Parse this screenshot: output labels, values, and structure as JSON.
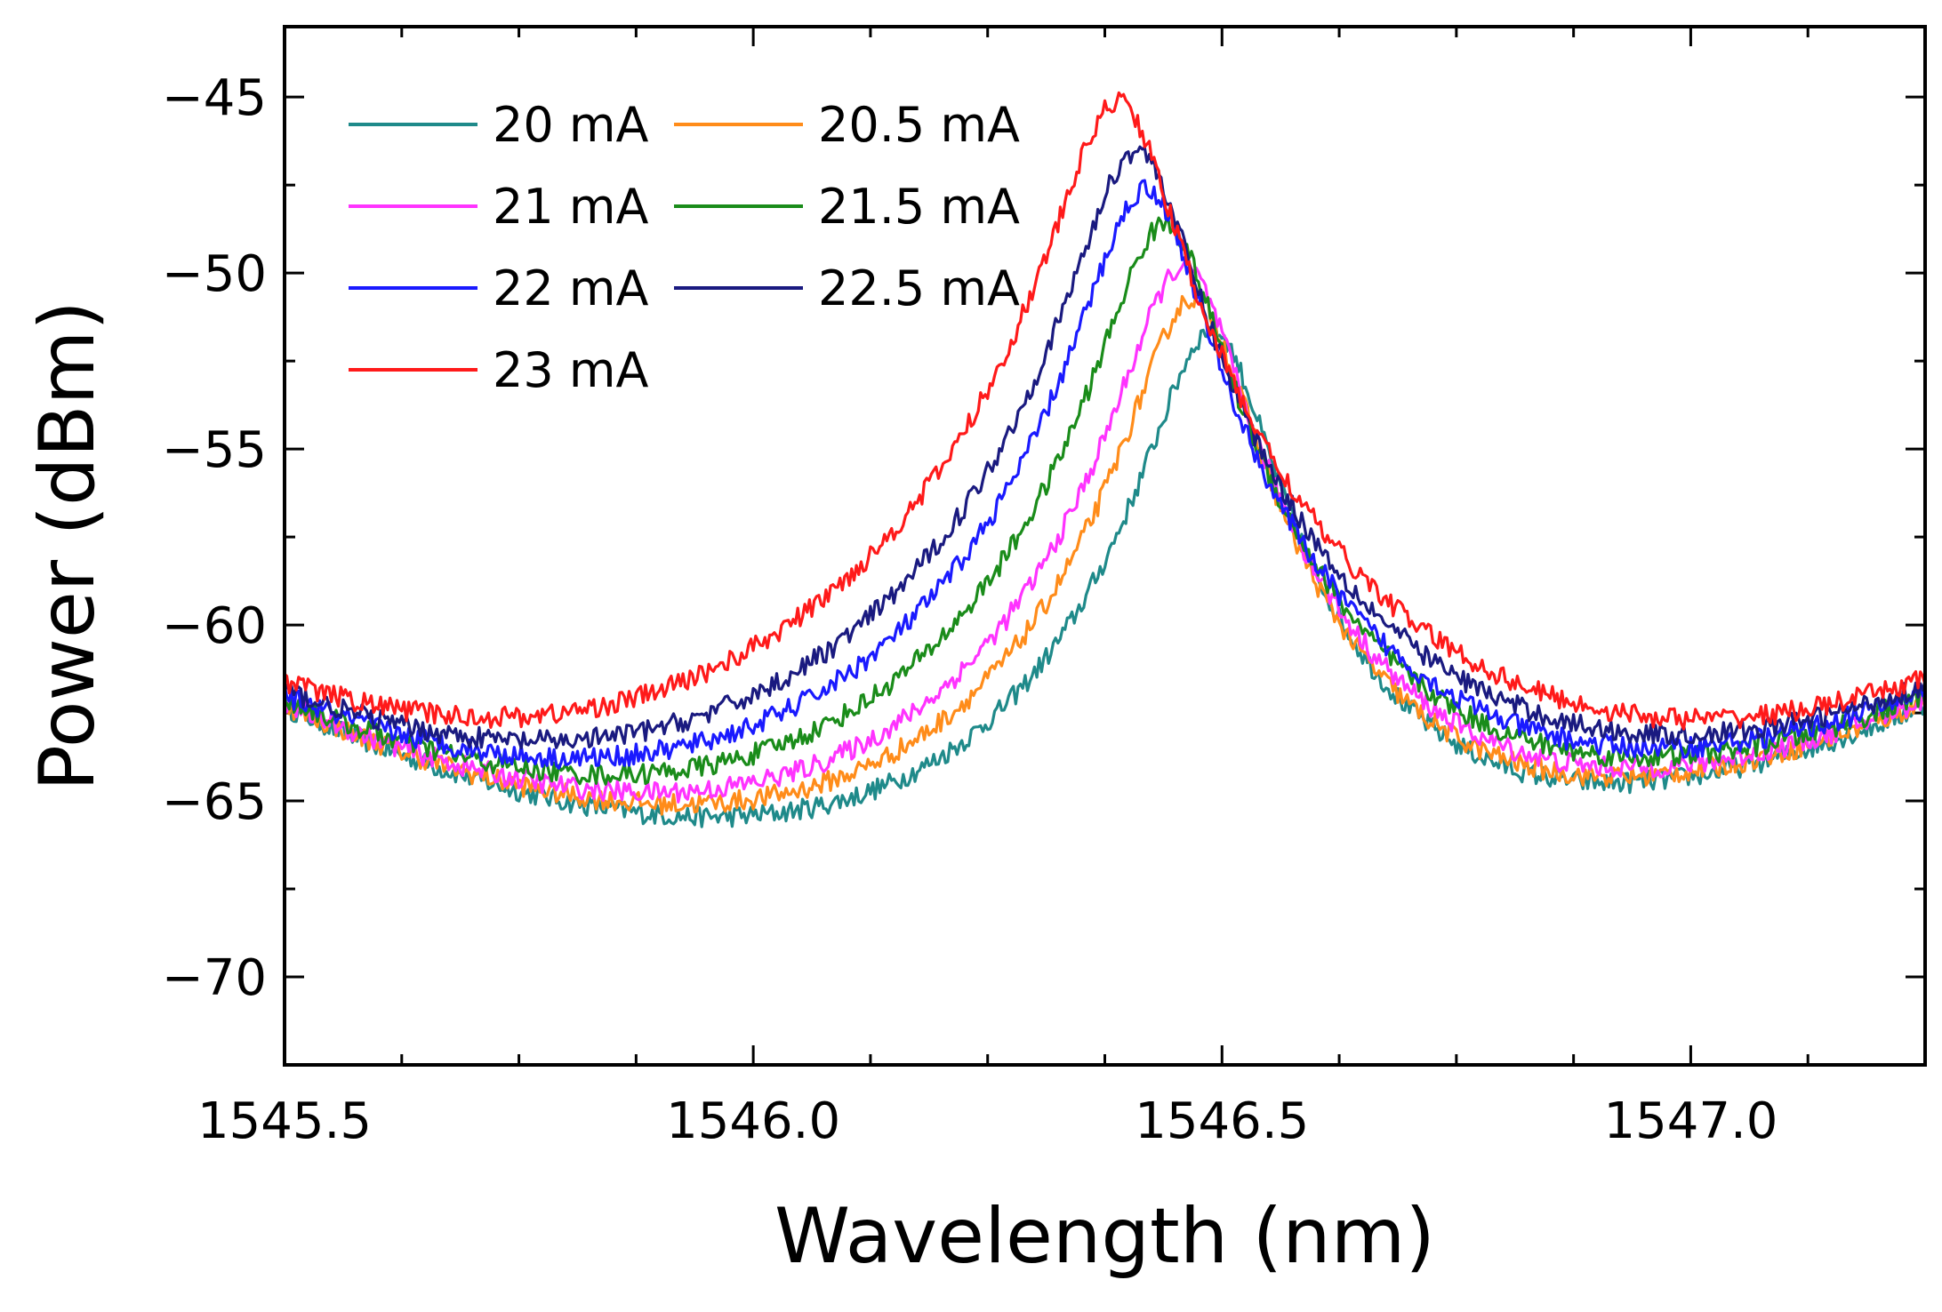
{
  "chart_data": {
    "type": "line",
    "title": "",
    "xlabel": "Wavelength (nm)",
    "ylabel": "Power (dBm)",
    "xlim": [
      1545.5,
      1547.25
    ],
    "ylim": [
      -72.5,
      -43
    ],
    "x_ticks": [
      1545.5,
      1546.0,
      1546.5,
      1547.0
    ],
    "x_tick_labels": [
      "1545.5",
      "1546.0",
      "1546.5",
      "1547.0"
    ],
    "y_ticks": [
      -45,
      -50,
      -55,
      -60,
      -65,
      -70
    ],
    "y_tick_labels": [
      "−45",
      "−50",
      "−55",
      "−60",
      "−65",
      "−70"
    ],
    "legend_position": "top-left",
    "series": [
      {
        "name": "20 mA",
        "color": "#1f8a8a",
        "peak_x": 1546.49,
        "peak_y": -51.6,
        "shift": 0.0
      },
      {
        "name": "20.5 mA",
        "color": "#ff8c1a",
        "peak_x": 1546.47,
        "peak_y": -50.7,
        "shift": 0.04
      },
      {
        "name": "21 mA",
        "color": "#ff33ff",
        "peak_x": 1546.46,
        "peak_y": -49.8,
        "shift": 0.08
      },
      {
        "name": "21.5 mA",
        "color": "#1a8c1a",
        "peak_x": 1546.44,
        "peak_y": -48.6,
        "shift": 0.12
      },
      {
        "name": "22 mA",
        "color": "#1a1aff",
        "peak_x": 1546.42,
        "peak_y": -47.6,
        "shift": 0.16
      },
      {
        "name": "22.5 mA",
        "color": "#1a1a80",
        "peak_x": 1546.41,
        "peak_y": -46.5,
        "shift": 0.2
      },
      {
        "name": "23 mA",
        "color": "#ff1a1a",
        "peak_x": 1546.39,
        "peak_y": -45.1,
        "shift": 0.24
      }
    ]
  }
}
